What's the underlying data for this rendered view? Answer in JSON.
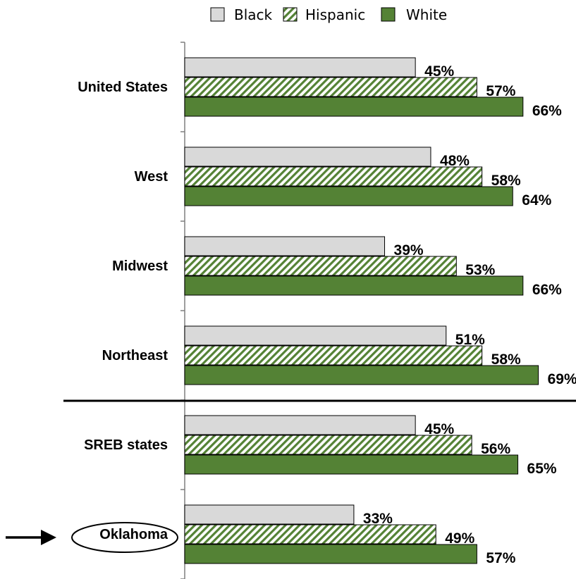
{
  "chart_data": {
    "type": "bar",
    "orientation": "horizontal",
    "categories": [
      "United States",
      "West",
      "Midwest",
      "Northeast",
      "SREB states",
      "Oklahoma"
    ],
    "series": [
      {
        "name": "Black",
        "values": [
          45,
          48,
          39,
          51,
          45,
          33
        ],
        "labels": [
          "45%",
          "48%",
          "39%",
          "51%",
          "45%",
          "33%"
        ],
        "color": "#d9d9d9",
        "pattern": "solid"
      },
      {
        "name": "Hispanic",
        "values": [
          57,
          58,
          53,
          58,
          56,
          49
        ],
        "labels": [
          "57%",
          "58%",
          "53%",
          "58%",
          "56%",
          "49%"
        ],
        "color": "#548235",
        "pattern": "diagonal-stripes"
      },
      {
        "name": "White",
        "values": [
          66,
          64,
          66,
          69,
          65,
          57
        ],
        "labels": [
          "66%",
          "64%",
          "66%",
          "69%",
          "65%",
          "57%"
        ],
        "color": "#548235",
        "pattern": "solid"
      }
    ],
    "xlim": [
      0,
      80
    ],
    "legend_position": "top",
    "highlighted_category": "Oklahoma",
    "separator_after_category": "Northeast",
    "grid": false,
    "x_axis_visible": false
  },
  "colors": {
    "black_series": "#d9d9d9",
    "green": "#548235",
    "axis": "#7f7f7f"
  },
  "icons": {
    "highlight_marker": "right-arrow-icon"
  }
}
